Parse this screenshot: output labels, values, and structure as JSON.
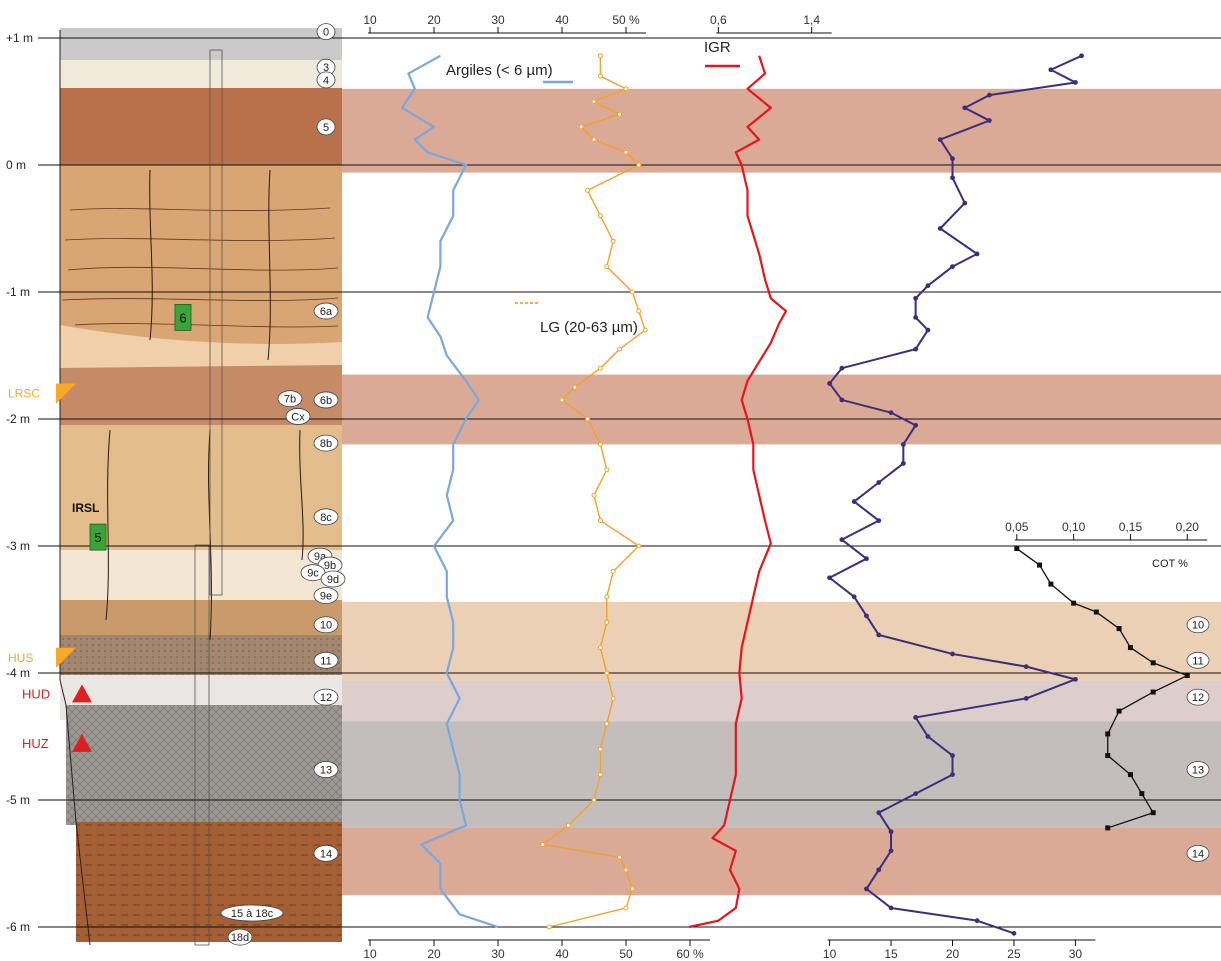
{
  "colors": {
    "clay": "#7aa7dd",
    "loess": "#f2a228",
    "igr": "#e8141c",
    "sm": "#3b2f7c",
    "cot": "#111111",
    "band_red": "#d59b85",
    "band_beige": "#e7c8a9",
    "band_grey": "#b8b3b0",
    "band_mauve": "#d8c6c2",
    "marker_orange": "#f7a827",
    "marker_red": "#e02020",
    "marker_green": "#3aa33a"
  },
  "depth_axis": {
    "labels": [
      "+1 m",
      "0 m",
      "-1 m",
      "-2 m",
      "-3 m",
      "-4 m",
      "-5 m",
      "-6 m"
    ],
    "values": [
      1,
      0,
      -1,
      -2,
      -3,
      -4,
      -5,
      -6
    ]
  },
  "units": [
    {
      "id": "0",
      "depth": 1.05
    },
    {
      "id": "3",
      "depth": 0.77
    },
    {
      "id": "4",
      "depth": 0.67
    },
    {
      "id": "5",
      "depth": 0.3
    },
    {
      "id": "6a",
      "depth": -1.15
    },
    {
      "id": "6b",
      "depth": -1.85
    },
    {
      "id": "7b",
      "depth": -1.84
    },
    {
      "id": "Cx",
      "depth": -1.98
    },
    {
      "id": "8b",
      "depth": -2.19
    },
    {
      "id": "8c",
      "depth": -2.77
    },
    {
      "id": "9a",
      "depth": -3.08
    },
    {
      "id": "9b",
      "depth": -3.15
    },
    {
      "id": "9c",
      "depth": -3.21
    },
    {
      "id": "9d",
      "depth": -3.26
    },
    {
      "id": "9e",
      "depth": -3.39
    },
    {
      "id": "10",
      "depth": -3.62
    },
    {
      "id": "11",
      "depth": -3.9
    },
    {
      "id": "12",
      "depth": -4.19
    },
    {
      "id": "13",
      "depth": -4.76
    },
    {
      "id": "14",
      "depth": -5.42
    },
    {
      "id": "15 à 18c",
      "depth": -5.89
    },
    {
      "id": "18d",
      "depth": -6.08
    }
  ],
  "markers": {
    "orange": [
      {
        "label": "LRSC",
        "depth": -1.8
      },
      {
        "label": "HUS",
        "depth": -3.88
      }
    ],
    "red": [
      {
        "label": "HUD",
        "depth": -4.16
      },
      {
        "label": "HUZ",
        "depth": -4.55
      }
    ],
    "green": [
      {
        "label": "6",
        "depth": -1.2
      },
      {
        "label": "5",
        "depth": -2.93
      }
    ],
    "irsl_label": "IRSL"
  },
  "bands": [
    {
      "top": 0.6,
      "bottom": -0.06,
      "color": "band_red"
    },
    {
      "top": -1.65,
      "bottom": -2.2,
      "color": "band_red"
    },
    {
      "top": -3.44,
      "bottom": -3.7,
      "color": "band_beige"
    },
    {
      "top": -3.7,
      "bottom": -4.06,
      "color": "band_beige"
    },
    {
      "top": -4.06,
      "bottom": -4.38,
      "color": "band_mauve"
    },
    {
      "top": -4.38,
      "bottom": -5.22,
      "color": "band_grey"
    },
    {
      "top": -5.22,
      "bottom": -5.75,
      "color": "band_red"
    }
  ],
  "chart_data": {
    "type": "line",
    "depth_unit": "m",
    "series": [
      {
        "key": "clay",
        "name": "Argiles (< 6 µm)",
        "axis": "bottom",
        "depth": [
          0.86,
          0.72,
          0.6,
          0.45,
          0.3,
          0.2,
          0.1,
          0,
          -0.2,
          -0.4,
          -0.6,
          -0.8,
          -1,
          -1.2,
          -1.35,
          -1.5,
          -1.7,
          -1.85,
          -2,
          -2.2,
          -2.4,
          -2.6,
          -2.8,
          -3,
          -3.2,
          -3.4,
          -3.6,
          -3.8,
          -4,
          -4.2,
          -4.4,
          -4.6,
          -4.8,
          -5,
          -5.2,
          -5.35,
          -5.5,
          -5.7,
          -5.9,
          -6
        ],
        "values": [
          21,
          16,
          17,
          15,
          20,
          17,
          19,
          25,
          23,
          23,
          21,
          21,
          20,
          19,
          21,
          22,
          25,
          27,
          25,
          23,
          23,
          22,
          23,
          20,
          22,
          22,
          23,
          23,
          22,
          24,
          22,
          23,
          24,
          24,
          25,
          18,
          21,
          21,
          24,
          30
        ]
      },
      {
        "key": "loess",
        "name": "LG (20-63 µm)",
        "axis": "bottom",
        "depth": [
          0.86,
          0.7,
          0.6,
          0.5,
          0.4,
          0.3,
          0.2,
          0.1,
          0,
          -0.2,
          -0.4,
          -0.6,
          -0.8,
          -1,
          -1.15,
          -1.3,
          -1.45,
          -1.6,
          -1.75,
          -1.85,
          -2,
          -2.2,
          -2.4,
          -2.6,
          -2.8,
          -3,
          -3.2,
          -3.4,
          -3.6,
          -3.8,
          -4,
          -4.2,
          -4.4,
          -4.6,
          -4.8,
          -5,
          -5.2,
          -5.35,
          -5.45,
          -5.55,
          -5.7,
          -5.85,
          -6
        ],
        "values": [
          46,
          46,
          50,
          45,
          49,
          43,
          45,
          50,
          52,
          44,
          46,
          48,
          47,
          51,
          52,
          53,
          49,
          46,
          42,
          40,
          44,
          46,
          47,
          45,
          46,
          52,
          48,
          47,
          47,
          46,
          47,
          48,
          47,
          46,
          46,
          45,
          41,
          37,
          49,
          50,
          51,
          50,
          38
        ]
      },
      {
        "key": "igr",
        "name": "IGR",
        "axis": "top-small",
        "depth": [
          0.86,
          0.72,
          0.6,
          0.45,
          0.3,
          0.2,
          0.1,
          0,
          -0.2,
          -0.4,
          -0.55,
          -0.7,
          -0.9,
          -1.05,
          -1.15,
          -1.25,
          -1.4,
          -1.55,
          -1.7,
          -1.85,
          -2,
          -2.2,
          -2.4,
          -2.6,
          -2.8,
          -2.98,
          -3.2,
          -3.4,
          -3.6,
          -3.8,
          -4,
          -4.2,
          -4.4,
          -4.6,
          -4.8,
          -5,
          -5.2,
          -5.3,
          -5.4,
          -5.55,
          -5.7,
          -5.85,
          -5.95,
          -6
        ],
        "values": [
          0.95,
          1.0,
          0.85,
          1.05,
          0.85,
          0.95,
          0.75,
          0.8,
          0.85,
          0.85,
          0.9,
          0.95,
          1.0,
          1.05,
          1.18,
          1.12,
          1.05,
          0.95,
          0.85,
          0.8,
          0.85,
          0.9,
          0.9,
          0.95,
          1.0,
          1.05,
          0.95,
          0.9,
          0.85,
          0.8,
          0.78,
          0.8,
          0.75,
          0.75,
          0.75,
          0.7,
          0.65,
          0.55,
          0.75,
          0.7,
          0.78,
          0.75,
          0.6,
          0.35
        ]
      },
      {
        "key": "sm",
        "name": "",
        "axis": "bottom-right",
        "depth": [
          0.86,
          0.75,
          0.65,
          0.55,
          0.45,
          0.35,
          0.2,
          0.05,
          -0.1,
          -0.3,
          -0.5,
          -0.7,
          -0.8,
          -0.95,
          -1.05,
          -1.2,
          -1.3,
          -1.45,
          -1.6,
          -1.72,
          -1.85,
          -1.95,
          -2.05,
          -2.2,
          -2.35,
          -2.5,
          -2.65,
          -2.8,
          -2.95,
          -3.1,
          -3.25,
          -3.4,
          -3.55,
          -3.7,
          -3.85,
          -3.95,
          -4.05,
          -4.2,
          -4.35,
          -4.5,
          -4.65,
          -4.8,
          -4.95,
          -5.1,
          -5.25,
          -5.4,
          -5.55,
          -5.7,
          -5.85,
          -5.95,
          -6.05
        ],
        "values": [
          30.5,
          28,
          30,
          23,
          21,
          23,
          19,
          20,
          20,
          21,
          19,
          22,
          20,
          18,
          17,
          17,
          18,
          17,
          11,
          10,
          11,
          15,
          17,
          16,
          16,
          14,
          12,
          14,
          11,
          13,
          10,
          12,
          13,
          14,
          20,
          26,
          30,
          26,
          17,
          18,
          20,
          20,
          17,
          14,
          15,
          15,
          14,
          13,
          15,
          22,
          25
        ]
      },
      {
        "key": "cot",
        "name": "COT %",
        "axis": "inset",
        "depth": [
          -3.02,
          -3.15,
          -3.3,
          -3.45,
          -3.52,
          -3.65,
          -3.8,
          -3.92,
          -4.02,
          -4.15,
          -4.3,
          -4.48,
          -4.65,
          -4.8,
          -4.95,
          -5.1,
          -5.22
        ],
        "values": [
          0.05,
          0.07,
          0.08,
          0.1,
          0.12,
          0.14,
          0.15,
          0.17,
          0.2,
          0.17,
          0.14,
          0.13,
          0.13,
          0.15,
          0.16,
          0.17,
          0.13
        ]
      }
    ],
    "axes": {
      "top_pct": {
        "ticks": [
          10,
          20,
          30,
          40,
          50
        ],
        "labels": [
          "10",
          "20",
          "30",
          "40",
          "50 %"
        ],
        "range": [
          10,
          60
        ]
      },
      "top_small": {
        "ticks": [
          0.6,
          1.4
        ],
        "labels": [
          "0,6",
          "1,4"
        ],
        "range": [
          0.4,
          1.6
        ]
      },
      "bottom_pct": {
        "ticks": [
          10,
          20,
          30,
          40,
          50,
          60
        ],
        "labels": [
          "10",
          "20",
          "30",
          "40",
          "50",
          "60 %"
        ],
        "range": [
          10,
          60
        ]
      },
      "bottom_right": {
        "ticks": [
          10,
          15,
          20,
          25,
          30
        ],
        "labels": [
          "10",
          "15",
          "20",
          "25",
          "30"
        ],
        "range": [
          8,
          32
        ]
      },
      "inset": {
        "ticks": [
          0.05,
          0.1,
          0.15,
          0.2
        ],
        "labels": [
          "0,05",
          "0,10",
          "0,15",
          "0,20"
        ],
        "range": [
          0,
          0.22
        ]
      }
    }
  }
}
